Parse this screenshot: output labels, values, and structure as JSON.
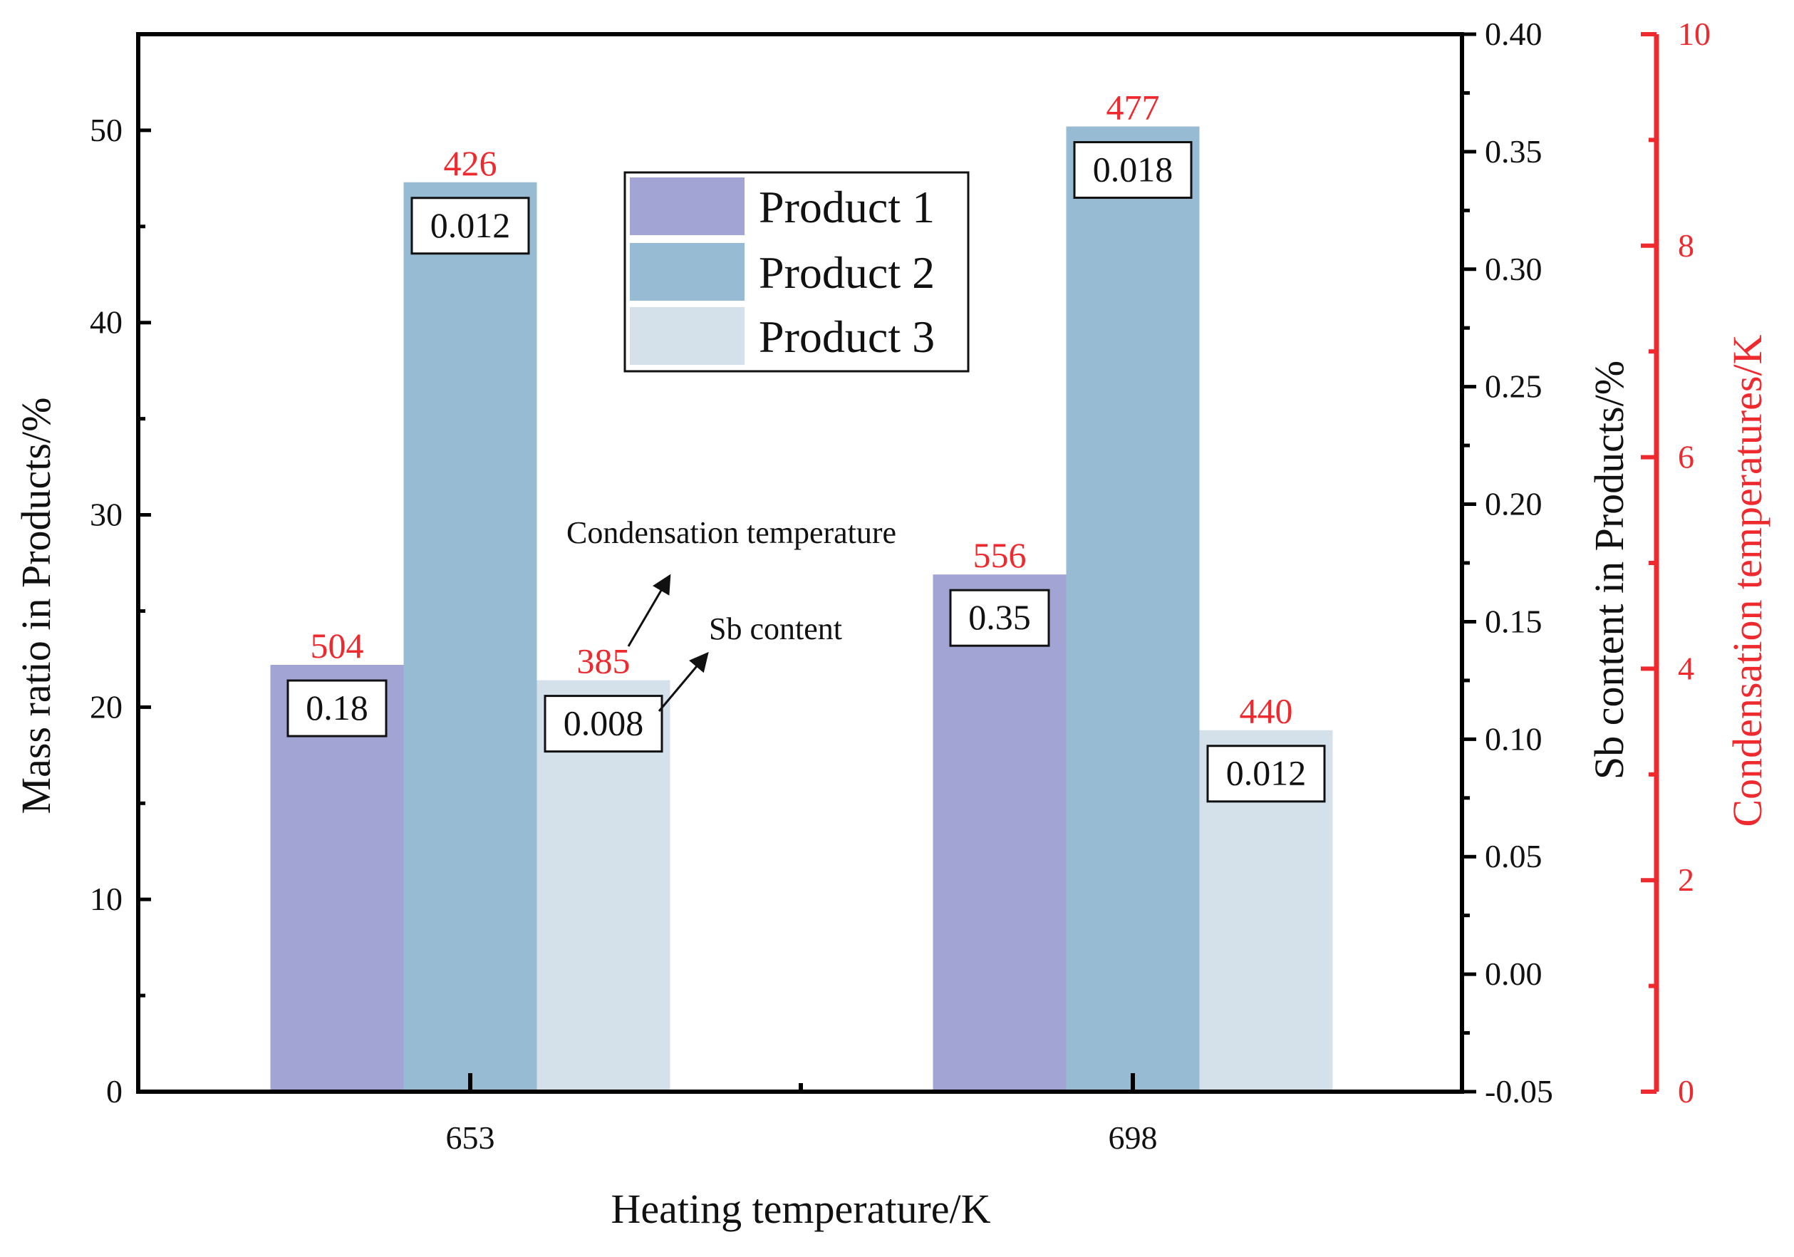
{
  "chart_data": {
    "type": "bar",
    "title": "",
    "xlabel": "Heating temperature/K",
    "ylabel": "Mass ratio in Products/%",
    "y2label": "Sb content in Products/%",
    "y3label": "Condensation temperatures/K",
    "categories": [
      "653",
      "698"
    ],
    "ylim": [
      0,
      55
    ],
    "y2lim": [
      -0.05,
      0.4
    ],
    "y3lim": [
      0,
      10
    ],
    "yticks": [
      "0",
      "10",
      "20",
      "30",
      "40",
      "50"
    ],
    "y2ticks": [
      "-0.05",
      "0.00",
      "0.05",
      "0.10",
      "0.15",
      "0.20",
      "0.25",
      "0.30",
      "0.35",
      "0.40"
    ],
    "y3ticks": [
      "0",
      "2",
      "4",
      "6",
      "8",
      "10"
    ],
    "series": [
      {
        "name": "Product 1",
        "color": "#a2a4d4",
        "values": [
          22.2,
          26.9
        ],
        "sb_content": [
          "0.18",
          "0.35"
        ],
        "condensation_temperature": [
          "504",
          "556"
        ]
      },
      {
        "name": "Product 2",
        "color": "#97bbd3",
        "values": [
          47.3,
          50.2
        ],
        "sb_content": [
          "0.012",
          "0.018"
        ],
        "condensation_temperature": [
          "426",
          "477"
        ]
      },
      {
        "name": "Product 3",
        "color": "#d4e1eb",
        "values": [
          21.4,
          18.8
        ],
        "sb_content": [
          "0.008",
          "0.012"
        ],
        "condensation_temperature": [
          "385",
          "440"
        ]
      }
    ],
    "annotations": {
      "condensation": "Condensation temperature",
      "sb": "Sb content"
    },
    "legend_position": "top-center",
    "accent_color": "#ee2a2f"
  }
}
